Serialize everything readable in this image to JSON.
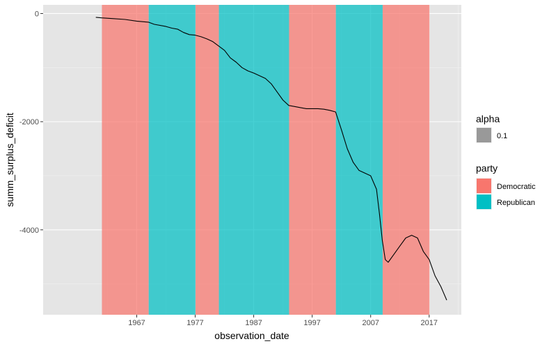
{
  "chart_data": {
    "type": "line",
    "title": "",
    "xlabel": "observation_date",
    "ylabel": "summ_surplus_deficit",
    "xlim": [
      1951,
      2022.5
    ],
    "ylim": [
      -5570,
      160
    ],
    "x_ticks": [
      1967,
      1977,
      1987,
      1997,
      2007,
      2017
    ],
    "x_tick_labels": [
      "1967",
      "1977",
      "1987",
      "1997",
      "2007",
      "2017"
    ],
    "y_ticks": [
      0,
      -2000,
      -4000
    ],
    "y_tick_labels": [
      "0",
      "-2000",
      "-4000"
    ],
    "grid": true,
    "background": "#e5e5e5",
    "party_periods": [
      {
        "party": "Democratic",
        "start": 1961.05,
        "end": 1969.05
      },
      {
        "party": "Republican",
        "start": 1969.05,
        "end": 1977.05
      },
      {
        "party": "Democratic",
        "start": 1977.05,
        "end": 1981.05
      },
      {
        "party": "Republican",
        "start": 1981.05,
        "end": 1993.05
      },
      {
        "party": "Democratic",
        "start": 1993.05,
        "end": 2001.05
      },
      {
        "party": "Republican",
        "start": 2001.05,
        "end": 2009.05
      },
      {
        "party": "Democratic",
        "start": 2009.05,
        "end": 2017.05
      }
    ],
    "series": [
      {
        "values": [
          [
            1960,
            -70
          ],
          [
            1961,
            -80
          ],
          [
            1963,
            -95
          ],
          [
            1965,
            -110
          ],
          [
            1967,
            -140
          ],
          [
            1969,
            -160
          ],
          [
            1970,
            -200
          ],
          [
            1972,
            -240
          ],
          [
            1973,
            -270
          ],
          [
            1974,
            -290
          ],
          [
            1975,
            -350
          ],
          [
            1976,
            -390
          ],
          [
            1977,
            -400
          ],
          [
            1978,
            -430
          ],
          [
            1979,
            -470
          ],
          [
            1980,
            -520
          ],
          [
            1981,
            -600
          ],
          [
            1982,
            -680
          ],
          [
            1983,
            -820
          ],
          [
            1984,
            -900
          ],
          [
            1985,
            -1000
          ],
          [
            1986,
            -1060
          ],
          [
            1987,
            -1100
          ],
          [
            1988,
            -1150
          ],
          [
            1989,
            -1200
          ],
          [
            1990,
            -1300
          ],
          [
            1991,
            -1450
          ],
          [
            1992,
            -1600
          ],
          [
            1993,
            -1700
          ],
          [
            1994,
            -1720
          ],
          [
            1995,
            -1740
          ],
          [
            1996,
            -1760
          ],
          [
            1997,
            -1760
          ],
          [
            1998,
            -1760
          ],
          [
            1999,
            -1770
          ],
          [
            2000,
            -1790
          ],
          [
            2001,
            -1820
          ],
          [
            2002,
            -2150
          ],
          [
            2003,
            -2500
          ],
          [
            2004,
            -2750
          ],
          [
            2005,
            -2900
          ],
          [
            2006,
            -2950
          ],
          [
            2007,
            -3000
          ],
          [
            2008,
            -3250
          ],
          [
            2008.5,
            -3700
          ],
          [
            2009,
            -4200
          ],
          [
            2009.5,
            -4550
          ],
          [
            2010,
            -4600
          ],
          [
            2011,
            -4450
          ],
          [
            2012,
            -4300
          ],
          [
            2013,
            -4150
          ],
          [
            2014,
            -4100
          ],
          [
            2015,
            -4150
          ],
          [
            2016,
            -4400
          ],
          [
            2017,
            -4550
          ],
          [
            2018,
            -4850
          ],
          [
            2019,
            -5050
          ],
          [
            2020,
            -5300
          ]
        ]
      }
    ],
    "legend": {
      "alpha": {
        "title": "alpha",
        "label": "0.1"
      },
      "party": {
        "title": "party",
        "entries": [
          {
            "label": "Democratic",
            "color": "#f8766d"
          },
          {
            "label": "Republican",
            "color": "#00bfc4"
          }
        ]
      }
    },
    "colors": {
      "Democratic": "#f8766d",
      "Republican": "#00bfc4",
      "line": "#000000",
      "alpha_key": "#999999"
    }
  }
}
